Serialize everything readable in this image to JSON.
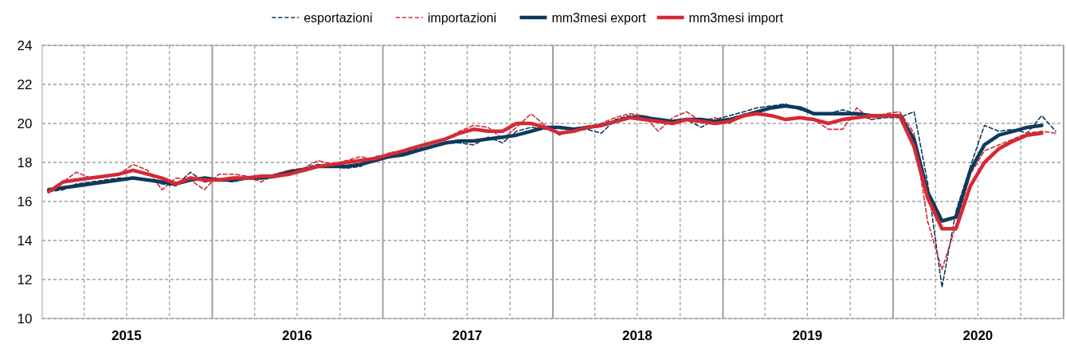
{
  "chart_data": {
    "type": "line",
    "legend": "top",
    "grid": true,
    "x": [
      "2015-01-15",
      "2015-02-15",
      "2015-03-15",
      "2015-04-15",
      "2015-05-15",
      "2015-06-15",
      "2015-07-15",
      "2015-08-15",
      "2015-09-15",
      "2015-10-15",
      "2015-11-15",
      "2015-12-15",
      "2016-01-15",
      "2016-02-15",
      "2016-03-15",
      "2016-04-15",
      "2016-05-15",
      "2016-06-15",
      "2016-07-15",
      "2016-08-15",
      "2016-09-15",
      "2016-10-15",
      "2016-11-15",
      "2016-12-15",
      "2017-01-15",
      "2017-02-15",
      "2017-03-15",
      "2017-04-15",
      "2017-05-15",
      "2017-06-15",
      "2017-07-15",
      "2017-08-15",
      "2017-09-15",
      "2017-10-15",
      "2017-11-15",
      "2017-12-15",
      "2018-01-15",
      "2018-02-15",
      "2018-03-15",
      "2018-04-15",
      "2018-05-15",
      "2018-06-15",
      "2018-07-15",
      "2018-08-15",
      "2018-09-15",
      "2018-10-15",
      "2018-11-15",
      "2018-12-15",
      "2019-01-15",
      "2019-02-15",
      "2019-03-15",
      "2019-04-15",
      "2019-05-15",
      "2019-06-15",
      "2019-07-15",
      "2019-08-15",
      "2019-09-15",
      "2019-10-15",
      "2019-11-15",
      "2019-12-15",
      "2020-01-15",
      "2020-02-15",
      "2020-03-15",
      "2020-04-15",
      "2020-05-15",
      "2020-06-15",
      "2020-07-15",
      "2020-08-15",
      "2020-09-15",
      "2020-10-15",
      "2020-11-15",
      "2020-12-15"
    ],
    "xlim": [
      "2015-01-01",
      "2021-01-01"
    ],
    "xticks": [
      {
        "value": "2015-04-01",
        "label": null
      },
      {
        "value": "2015-07-01",
        "label": "2015"
      },
      {
        "value": "2015-10-01",
        "label": null
      },
      {
        "value": "2016-01-01",
        "label": null
      },
      {
        "value": "2016-04-01",
        "label": null
      },
      {
        "value": "2016-07-01",
        "label": "2016"
      },
      {
        "value": "2016-10-01",
        "label": null
      },
      {
        "value": "2017-01-01",
        "label": null
      },
      {
        "value": "2017-04-01",
        "label": null
      },
      {
        "value": "2017-07-01",
        "label": "2017"
      },
      {
        "value": "2017-10-01",
        "label": null
      },
      {
        "value": "2018-01-01",
        "label": null
      },
      {
        "value": "2018-04-01",
        "label": null
      },
      {
        "value": "2018-07-01",
        "label": "2018"
      },
      {
        "value": "2018-10-01",
        "label": null
      },
      {
        "value": "2019-01-01",
        "label": null
      },
      {
        "value": "2019-04-01",
        "label": null
      },
      {
        "value": "2019-07-01",
        "label": "2019"
      },
      {
        "value": "2019-10-01",
        "label": null
      },
      {
        "value": "2020-01-01",
        "label": null
      },
      {
        "value": "2020-04-01",
        "label": null
      },
      {
        "value": "2020-07-01",
        "label": "2020"
      },
      {
        "value": "2020-10-01",
        "label": null
      },
      {
        "value": "2021-01-01",
        "label": null
      }
    ],
    "ylim": [
      10,
      24
    ],
    "yticks": [
      10,
      12,
      14,
      16,
      18,
      20,
      22,
      24
    ],
    "series": [
      {
        "name": "esportazioni",
        "color": "#0e3a5c",
        "line_style": "dashed",
        "values": [
          16.5,
          16.6,
          16.9,
          17.0,
          17.1,
          17.2,
          17.2,
          17.1,
          16.9,
          16.8,
          17.5,
          17.0,
          17.1,
          17.0,
          17.2,
          17.2,
          17.4,
          17.6,
          17.7,
          17.9,
          17.8,
          17.7,
          17.8,
          18.3,
          18.4,
          18.5,
          18.7,
          18.8,
          19.0,
          19.0,
          18.9,
          19.3,
          19.0,
          19.6,
          19.8,
          19.7,
          19.8,
          19.6,
          19.7,
          19.5,
          20.2,
          20.4,
          20.4,
          20.2,
          20.1,
          20.2,
          19.8,
          20.2,
          20.4,
          20.6,
          20.8,
          20.9,
          21.0,
          20.7,
          20.5,
          20.5,
          20.7,
          20.5,
          20.2,
          20.3,
          20.3,
          20.6,
          17.0,
          11.6,
          15.5,
          17.8,
          19.9,
          19.6,
          19.7,
          19.5,
          20.4,
          19.6
        ]
      },
      {
        "name": "importazioni",
        "color": "#d42a36",
        "line_style": "dashed",
        "values": [
          16.5,
          17.0,
          17.5,
          17.2,
          17.3,
          17.4,
          17.9,
          17.6,
          16.6,
          17.2,
          17.1,
          16.6,
          17.4,
          17.4,
          17.3,
          17.0,
          17.4,
          17.6,
          17.7,
          18.1,
          17.9,
          18.1,
          18.3,
          18.1,
          18.5,
          18.6,
          18.8,
          19.0,
          19.2,
          19.6,
          19.9,
          19.8,
          19.2,
          19.8,
          20.5,
          19.9,
          19.4,
          19.7,
          19.8,
          20.0,
          20.3,
          20.5,
          20.4,
          19.6,
          20.3,
          20.6,
          20.1,
          20.3,
          20.0,
          20.5,
          20.5,
          20.4,
          20.2,
          20.3,
          20.2,
          19.7,
          19.7,
          20.8,
          20.2,
          20.5,
          20.6,
          19.5,
          15.0,
          12.5,
          14.8,
          17.4,
          18.6,
          18.9,
          19.2,
          19.5,
          19.6,
          19.5
        ]
      },
      {
        "name": "mm3mesi export",
        "color": "#0e3a5c",
        "line_style": "solid",
        "values": [
          16.6,
          16.7,
          16.8,
          16.9,
          17.0,
          17.1,
          17.2,
          17.1,
          17.0,
          16.9,
          17.1,
          17.2,
          17.1,
          17.1,
          17.2,
          17.2,
          17.3,
          17.5,
          17.6,
          17.8,
          17.8,
          17.8,
          17.9,
          18.1,
          18.3,
          18.4,
          18.6,
          18.8,
          19.0,
          19.1,
          19.1,
          19.2,
          19.3,
          19.4,
          19.6,
          19.8,
          19.8,
          19.7,
          19.8,
          19.9,
          20.1,
          20.3,
          20.3,
          20.2,
          20.1,
          20.2,
          20.2,
          20.1,
          20.2,
          20.4,
          20.6,
          20.8,
          20.9,
          20.8,
          20.5,
          20.5,
          20.5,
          20.5,
          20.4,
          20.4,
          20.4,
          19.2,
          16.5,
          15.0,
          15.2,
          17.6,
          18.9,
          19.4,
          19.6,
          19.8,
          19.9,
          null
        ]
      },
      {
        "name": "mm3mesi import",
        "color": "#d42a36",
        "line_style": "solid",
        "values": [
          16.5,
          17.0,
          17.1,
          17.2,
          17.3,
          17.4,
          17.6,
          17.4,
          17.2,
          16.9,
          17.2,
          17.1,
          17.1,
          17.2,
          17.2,
          17.3,
          17.3,
          17.4,
          17.6,
          17.8,
          17.9,
          18.0,
          18.1,
          18.2,
          18.4,
          18.6,
          18.8,
          19.0,
          19.2,
          19.5,
          19.7,
          19.6,
          19.6,
          20.0,
          20.0,
          19.8,
          19.5,
          19.6,
          19.8,
          19.9,
          20.1,
          20.3,
          20.2,
          20.1,
          20.0,
          20.2,
          20.1,
          20.0,
          20.1,
          20.4,
          20.5,
          20.4,
          20.2,
          20.3,
          20.2,
          20.0,
          20.2,
          20.3,
          20.4,
          20.4,
          20.4,
          18.8,
          16.2,
          14.6,
          14.6,
          16.8,
          18.0,
          18.7,
          19.1,
          19.4,
          19.5,
          null
        ]
      }
    ]
  }
}
